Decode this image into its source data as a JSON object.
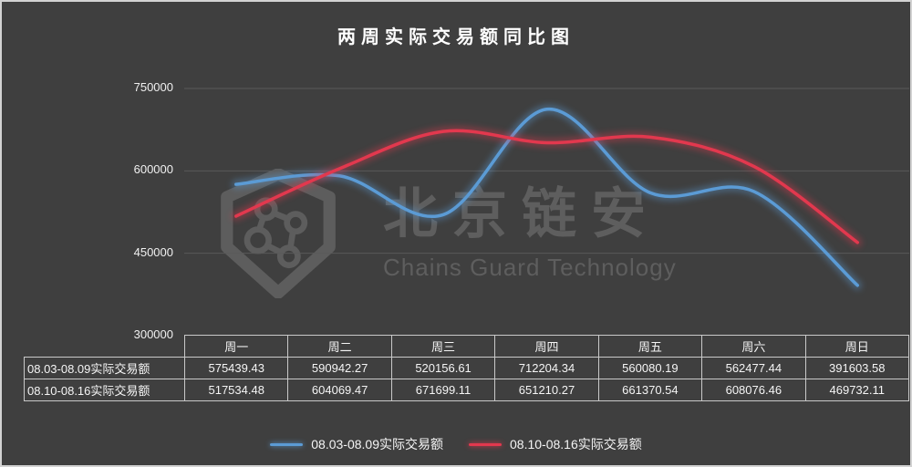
{
  "page": {
    "background": "#3f3f3f",
    "border_color": "#d2d2d2",
    "text_color": "#f5f5f5"
  },
  "chart_data": {
    "type": "line",
    "title": "两周实际交易额同比图",
    "categories": [
      "周一",
      "周二",
      "周三",
      "周四",
      "周五",
      "周六",
      "周日"
    ],
    "series": [
      {
        "name": "08.03-08.09实际交易额",
        "color": "#5b9bd5",
        "values": [
          575439.43,
          590942.27,
          520156.61,
          712204.34,
          560080.19,
          562477.44,
          391603.58
        ]
      },
      {
        "name": "08.10-08.16实际交易额",
        "color": "#e2384e",
        "values": [
          517534.48,
          604069.47,
          671699.11,
          651210.27,
          661370.54,
          608076.46,
          469732.11
        ]
      }
    ],
    "ylim": [
      300000,
      750000
    ],
    "yticks": [
      750000,
      600000,
      450000,
      300000
    ],
    "grid": true,
    "smooth_lines": true,
    "legend_position": "bottom",
    "data_table_shown": true
  },
  "table": {
    "corner": "",
    "row_labels": [
      "08.03-08.09实际交易额",
      "08.10-08.16实际交易额"
    ],
    "rows": [
      [
        "575439.43",
        "590942.27",
        "520156.61",
        "712204.34",
        "560080.19",
        "562477.44",
        "391603.58"
      ],
      [
        "517534.48",
        "604069.47",
        "671699.11",
        "651210.27",
        "661370.54",
        "608076.46",
        "469732.11"
      ]
    ]
  },
  "legend": {
    "items": [
      {
        "label": "08.03-08.09实际交易额",
        "color": "#5b9bd5"
      },
      {
        "label": "08.10-08.16实际交易额",
        "color": "#e2384e"
      }
    ]
  },
  "watermark": {
    "logo": "shield-network-logo",
    "text_cn": "北京链安",
    "text_en": "Chains Guard Technology"
  }
}
